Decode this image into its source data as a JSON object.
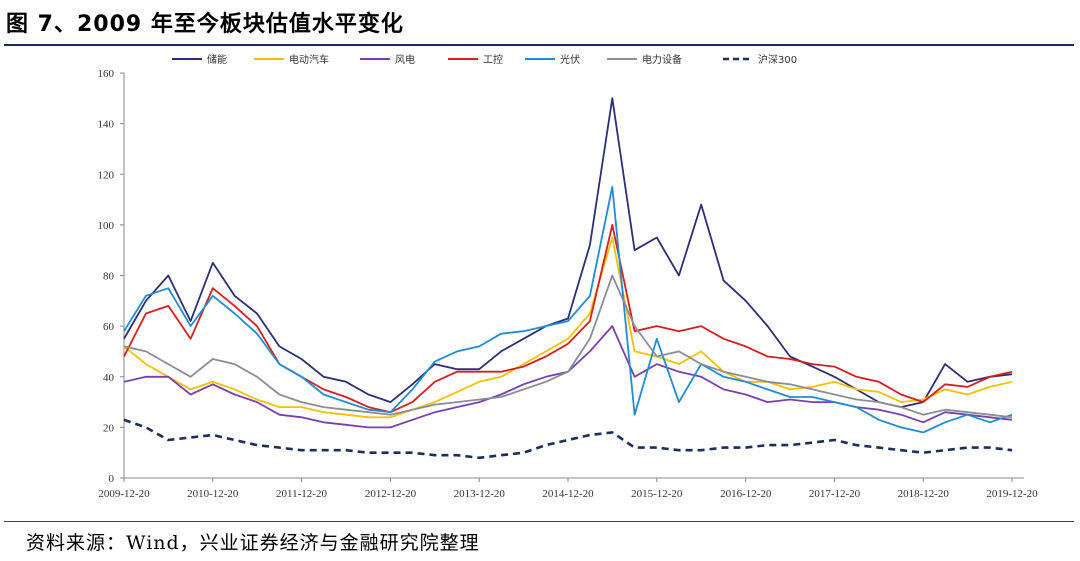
{
  "title": "图 7、2009 年至今板块估值水平变化",
  "source": "资料来源：Wind，兴业证券经济与金融研究院整理",
  "chart_data": {
    "type": "line",
    "title": "",
    "xlabel": "",
    "ylabel": "",
    "ylim": [
      0,
      160
    ],
    "yticks": [
      0,
      20,
      40,
      60,
      80,
      100,
      120,
      140,
      160
    ],
    "x_tick_labels": [
      "2009-12-20",
      "2010-12-20",
      "2011-12-20",
      "2012-12-20",
      "2013-12-20",
      "2014-12-20",
      "2015-12-20",
      "2016-12-20",
      "2017-12-20",
      "2018-12-20",
      "2019-12-20"
    ],
    "x_range": [
      "2009-12-20",
      "2019-12-20"
    ],
    "grid": false,
    "legend_position": "top",
    "x": [
      "2009-12-20",
      "2010-03-20",
      "2010-06-20",
      "2010-09-20",
      "2010-12-20",
      "2011-03-20",
      "2011-06-20",
      "2011-09-20",
      "2011-12-20",
      "2012-03-20",
      "2012-06-20",
      "2012-09-20",
      "2012-12-20",
      "2013-03-20",
      "2013-06-20",
      "2013-09-20",
      "2013-12-20",
      "2014-03-20",
      "2014-06-20",
      "2014-09-20",
      "2014-12-20",
      "2015-03-20",
      "2015-06-20",
      "2015-09-20",
      "2015-12-20",
      "2016-03-20",
      "2016-06-20",
      "2016-09-20",
      "2016-12-20",
      "2017-03-20",
      "2017-06-20",
      "2017-09-20",
      "2017-12-20",
      "2018-03-20",
      "2018-06-20",
      "2018-09-20",
      "2018-12-20",
      "2019-03-20",
      "2019-06-20",
      "2019-09-20",
      "2019-12-20"
    ],
    "series": [
      {
        "name": "储能",
        "color": "#2b2f7a",
        "dash": "",
        "values": [
          55,
          70,
          80,
          62,
          85,
          72,
          65,
          52,
          47,
          40,
          38,
          33,
          30,
          37,
          45,
          43,
          43,
          50,
          55,
          60,
          63,
          92,
          150,
          90,
          95,
          80,
          108,
          78,
          70,
          60,
          48,
          44,
          40,
          35,
          30,
          28,
          30,
          45,
          38,
          40,
          41
        ]
      },
      {
        "name": "电动汽车",
        "color": "#f5c000",
        "dash": "",
        "values": [
          52,
          45,
          40,
          35,
          38,
          35,
          31,
          28,
          28,
          26,
          25,
          24,
          24,
          27,
          30,
          34,
          38,
          40,
          45,
          50,
          55,
          65,
          95,
          50,
          48,
          45,
          50,
          42,
          38,
          38,
          35,
          36,
          38,
          35,
          34,
          30,
          31,
          35,
          33,
          36,
          38
        ]
      },
      {
        "name": "风电",
        "color": "#7a3fb0",
        "dash": "",
        "values": [
          38,
          40,
          40,
          33,
          37,
          33,
          30,
          25,
          24,
          22,
          21,
          20,
          20,
          23,
          26,
          28,
          30,
          33,
          37,
          40,
          42,
          50,
          60,
          40,
          45,
          42,
          40,
          35,
          33,
          30,
          31,
          30,
          30,
          28,
          27,
          25,
          22,
          26,
          25,
          24,
          23
        ]
      },
      {
        "name": "工控",
        "color": "#d81e1e",
        "dash": "",
        "values": [
          48,
          65,
          68,
          55,
          75,
          68,
          60,
          45,
          40,
          35,
          32,
          28,
          26,
          30,
          38,
          42,
          42,
          42,
          44,
          48,
          53,
          62,
          100,
          58,
          60,
          58,
          60,
          55,
          52,
          48,
          47,
          45,
          44,
          40,
          38,
          33,
          30,
          37,
          36,
          40,
          42
        ]
      },
      {
        "name": "光伏",
        "color": "#1f8dd6",
        "dash": "",
        "values": [
          58,
          72,
          75,
          60,
          72,
          65,
          57,
          45,
          40,
          33,
          30,
          27,
          26,
          35,
          46,
          50,
          52,
          57,
          58,
          60,
          62,
          72,
          115,
          25,
          55,
          30,
          45,
          40,
          38,
          35,
          32,
          32,
          30,
          28,
          23,
          20,
          18,
          22,
          25,
          22,
          25
        ]
      },
      {
        "name": "电力设备",
        "color": "#8c8c96",
        "dash": "",
        "values": [
          52,
          50,
          45,
          40,
          47,
          45,
          40,
          33,
          30,
          28,
          27,
          26,
          25,
          27,
          29,
          30,
          31,
          32,
          35,
          38,
          42,
          55,
          80,
          60,
          48,
          50,
          45,
          42,
          40,
          38,
          37,
          35,
          33,
          31,
          30,
          28,
          25,
          27,
          26,
          25,
          24
        ]
      },
      {
        "name": "沪深300",
        "color": "#1f2d5c",
        "dash": "7,5",
        "values": [
          23,
          20,
          15,
          16,
          17,
          15,
          13,
          12,
          11,
          11,
          11,
          10,
          10,
          10,
          9,
          9,
          8,
          9,
          10,
          13,
          15,
          17,
          18,
          12,
          12,
          11,
          11,
          12,
          12,
          13,
          13,
          14,
          15,
          13,
          12,
          11,
          10,
          11,
          12,
          12,
          11
        ]
      }
    ]
  }
}
